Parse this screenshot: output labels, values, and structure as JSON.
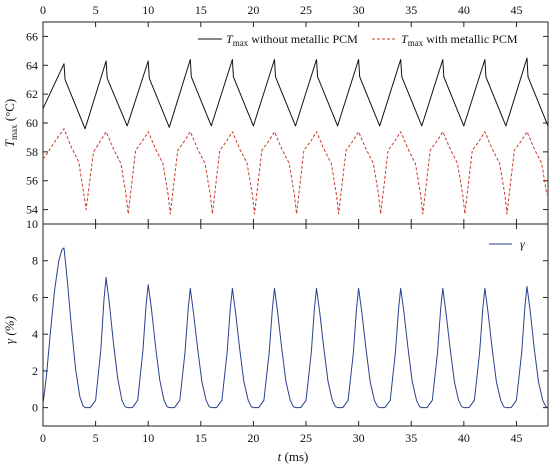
{
  "chart_data": [
    {
      "type": "line",
      "xlabel": "t (ms)",
      "ylabel": "T_max (°C)",
      "xlim": [
        0,
        48
      ],
      "ylim": [
        53,
        67
      ],
      "xticks": [
        0,
        5,
        10,
        15,
        20,
        25,
        30,
        35,
        40,
        45
      ],
      "yticks": [
        54,
        56,
        58,
        60,
        62,
        64,
        66
      ],
      "legend_position": "top-right",
      "colors": {
        "without": "#111111",
        "with": "#cc3b2b"
      },
      "series": [
        {
          "name": "T_max without metallic PCM",
          "style": "solid",
          "x": [
            0,
            2,
            2.1,
            4,
            6,
            6.1,
            8,
            10,
            10.1,
            12,
            14,
            14.1,
            16,
            18,
            18.1,
            20,
            22,
            22.1,
            24,
            26,
            26.1,
            28,
            30,
            30.1,
            32,
            34,
            34.1,
            36,
            38,
            38.1,
            40,
            42,
            42.1,
            44,
            46,
            46.1,
            48
          ],
          "y": [
            61.0,
            64.1,
            63.0,
            59.6,
            64.3,
            63.1,
            59.8,
            64.3,
            63.1,
            59.7,
            64.4,
            63.2,
            59.8,
            64.4,
            63.2,
            59.8,
            64.4,
            63.2,
            59.8,
            64.4,
            63.2,
            59.8,
            64.4,
            63.2,
            59.8,
            64.4,
            63.2,
            59.8,
            64.4,
            63.2,
            59.8,
            64.4,
            63.2,
            59.8,
            64.5,
            63.2,
            59.8
          ]
        },
        {
          "name": "T_max with metallic PCM",
          "style": "dashed",
          "x": [
            0,
            0.5,
            1.2,
            2,
            2.7,
            3.4,
            3.9,
            4.1,
            4.8,
            5.5,
            6,
            6.7,
            7.4,
            7.9,
            8.1,
            8.8,
            9.5,
            10,
            10.7,
            11.4,
            11.9,
            12.1,
            12.8,
            13.5,
            14,
            14.7,
            15.4,
            15.9,
            16.1,
            16.8,
            17.5,
            18,
            18.7,
            19.4,
            19.9,
            20.1,
            20.8,
            21.5,
            22,
            22.7,
            23.4,
            23.9,
            24.1,
            24.8,
            25.5,
            26,
            26.7,
            27.4,
            27.9,
            28.1,
            28.8,
            29.5,
            30,
            30.7,
            31.4,
            31.9,
            32.1,
            32.8,
            33.5,
            34,
            34.7,
            35.4,
            35.9,
            36.1,
            36.8,
            37.5,
            38,
            38.7,
            39.4,
            39.9,
            40.1,
            40.8,
            41.5,
            42,
            42.7,
            43.4,
            43.9,
            44.1,
            44.8,
            45.5,
            46,
            46.7,
            47.4,
            47.9
          ],
          "y": [
            57.5,
            58.0,
            58.8,
            59.6,
            58.3,
            57.3,
            55.0,
            54.0,
            58.0,
            58.8,
            59.4,
            58.2,
            57.2,
            55.0,
            53.7,
            58.1,
            58.8,
            59.4,
            58.2,
            57.2,
            55.0,
            53.7,
            58.1,
            58.8,
            59.4,
            58.2,
            57.2,
            55.0,
            53.7,
            58.1,
            58.8,
            59.4,
            58.2,
            57.2,
            55.0,
            53.7,
            58.1,
            58.8,
            59.4,
            58.2,
            57.2,
            55.0,
            53.7,
            58.1,
            58.8,
            59.4,
            58.2,
            57.2,
            55.0,
            53.7,
            58.1,
            58.8,
            59.4,
            58.2,
            57.2,
            55.0,
            53.7,
            58.1,
            58.8,
            59.4,
            58.2,
            57.2,
            55.0,
            53.7,
            58.1,
            58.8,
            59.4,
            58.2,
            57.2,
            55.0,
            53.7,
            58.1,
            58.8,
            59.4,
            58.2,
            57.2,
            55.0,
            53.7,
            58.1,
            58.8,
            59.4,
            58.2,
            57.2,
            55.0
          ]
        }
      ]
    },
    {
      "type": "line",
      "xlabel": "t (ms)",
      "ylabel": "γ (%)",
      "xlim": [
        0,
        48
      ],
      "ylim": [
        -1,
        10
      ],
      "xticks": [
        0,
        5,
        10,
        15,
        20,
        25,
        30,
        35,
        40,
        45
      ],
      "yticks": [
        0,
        2,
        4,
        6,
        8,
        10
      ],
      "legend_position": "top-right",
      "colors": {
        "gamma": "#2a3f8f"
      },
      "series": [
        {
          "name": "γ",
          "style": "solid",
          "x": [
            0,
            0.3,
            0.7,
            1.1,
            1.5,
            1.8,
            2.0,
            2.3,
            2.7,
            3.1,
            3.5,
            3.8,
            4.0,
            4.5,
            5.0,
            5.5,
            5.8,
            6.0,
            6.3,
            6.7,
            7.1,
            7.5,
            7.8,
            8.0,
            8.5,
            9.0,
            9.5,
            9.8,
            10.0,
            10.3,
            10.7,
            11.1,
            11.5,
            11.8,
            12.0,
            12.5,
            13.0,
            13.5,
            13.8,
            14.0,
            14.3,
            14.7,
            15.1,
            15.5,
            15.8,
            16.0,
            16.5,
            17.0,
            17.5,
            17.8,
            18.0,
            18.3,
            18.7,
            19.1,
            19.5,
            19.8,
            20.0,
            20.5,
            21.0,
            21.5,
            21.8,
            22.0,
            22.3,
            22.7,
            23.1,
            23.5,
            23.8,
            24.0,
            24.5,
            25.0,
            25.5,
            25.8,
            26.0,
            26.3,
            26.7,
            27.1,
            27.5,
            27.8,
            28.0,
            28.5,
            29.0,
            29.5,
            29.8,
            30.0,
            30.3,
            30.7,
            31.1,
            31.5,
            31.8,
            32.0,
            32.5,
            33.0,
            33.5,
            33.8,
            34.0,
            34.3,
            34.7,
            35.1,
            35.5,
            35.8,
            36.0,
            36.5,
            37.0,
            37.5,
            37.8,
            38.0,
            38.3,
            38.7,
            39.1,
            39.5,
            39.8,
            40.0,
            40.5,
            41.0,
            41.5,
            41.8,
            42.0,
            42.3,
            42.7,
            43.1,
            43.5,
            43.8,
            44.0,
            44.5,
            45.0,
            45.5,
            45.8,
            46.0,
            46.3,
            46.7,
            47.1,
            47.5,
            47.8,
            48.0
          ],
          "y": [
            0.2,
            1.6,
            4.1,
            6.4,
            8.0,
            8.6,
            8.7,
            7.0,
            4.4,
            2.1,
            0.6,
            0.1,
            0.0,
            0.0,
            0.4,
            3.2,
            5.9,
            7.1,
            5.7,
            3.5,
            1.6,
            0.4,
            0.05,
            0.0,
            0.0,
            0.4,
            3.1,
            5.6,
            6.7,
            5.4,
            3.3,
            1.5,
            0.4,
            0.05,
            0.0,
            0.0,
            0.4,
            3.0,
            5.4,
            6.5,
            5.2,
            3.2,
            1.4,
            0.4,
            0.05,
            0.0,
            0.0,
            0.4,
            3.0,
            5.4,
            6.5,
            5.2,
            3.2,
            1.4,
            0.4,
            0.05,
            0.0,
            0.0,
            0.4,
            3.0,
            5.4,
            6.5,
            5.2,
            3.2,
            1.4,
            0.4,
            0.05,
            0.0,
            0.0,
            0.4,
            3.0,
            5.4,
            6.5,
            5.2,
            3.2,
            1.4,
            0.4,
            0.05,
            0.0,
            0.0,
            0.4,
            3.0,
            5.4,
            6.5,
            5.2,
            3.2,
            1.4,
            0.4,
            0.05,
            0.0,
            0.0,
            0.4,
            3.0,
            5.4,
            6.5,
            5.2,
            3.2,
            1.4,
            0.4,
            0.05,
            0.0,
            0.0,
            0.4,
            3.0,
            5.4,
            6.5,
            5.2,
            3.2,
            1.4,
            0.4,
            0.05,
            0.0,
            0.0,
            0.4,
            3.0,
            5.4,
            6.5,
            5.2,
            3.2,
            1.4,
            0.4,
            0.05,
            0.0,
            0.0,
            0.4,
            3.0,
            5.5,
            6.6,
            5.3,
            3.2,
            1.4,
            0.4,
            0.05,
            0.0
          ]
        }
      ]
    }
  ],
  "labels": {
    "top_ylabel_main": "T",
    "top_ylabel_sub": "max",
    "top_ylabel_unit": " (°C)",
    "bottom_ylabel": "γ (%)",
    "xlabel_italic": "t",
    "xlabel_unit": " (ms)",
    "legend_without_main": "T",
    "legend_without_sub": "max",
    "legend_without_rest": " without metallic PCM",
    "legend_with_main": "T",
    "legend_with_sub": "max",
    "legend_with_rest": " with metallic PCM",
    "legend_gamma": "γ"
  }
}
